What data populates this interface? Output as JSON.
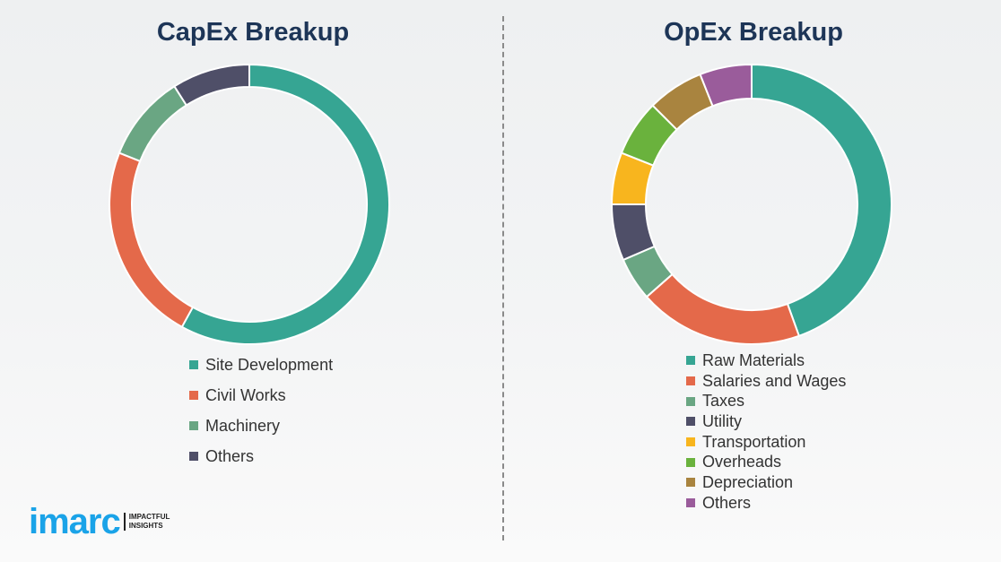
{
  "chart_data": [
    {
      "type": "pie",
      "title": "CapEx Breakup",
      "donut": true,
      "categories": [
        "Site Development",
        "Civil Works",
        "Machinery",
        "Others"
      ],
      "values": [
        58,
        23,
        10,
        9
      ],
      "colors": [
        "#36a593",
        "#e4694a",
        "#6aa683",
        "#4f4f68"
      ],
      "legend_position": "bottom"
    },
    {
      "type": "pie",
      "title": "OpEx Breakup",
      "donut": true,
      "categories": [
        "Raw Materials",
        "Salaries and Wages",
        "Taxes",
        "Utility",
        "Transportation",
        "Overheads",
        "Depreciation",
        "Others"
      ],
      "values": [
        44.5,
        19,
        5,
        6.5,
        6,
        6.5,
        6.5,
        6
      ],
      "colors": [
        "#36a593",
        "#e4694a",
        "#6aa683",
        "#4f4f68",
        "#f8b51e",
        "#6ab23d",
        "#a9843f",
        "#9a5c9b"
      ],
      "legend_position": "bottom"
    }
  ],
  "logo": {
    "word": "imarc",
    "tagline": "IMPACTFUL INSIGHTS"
  }
}
